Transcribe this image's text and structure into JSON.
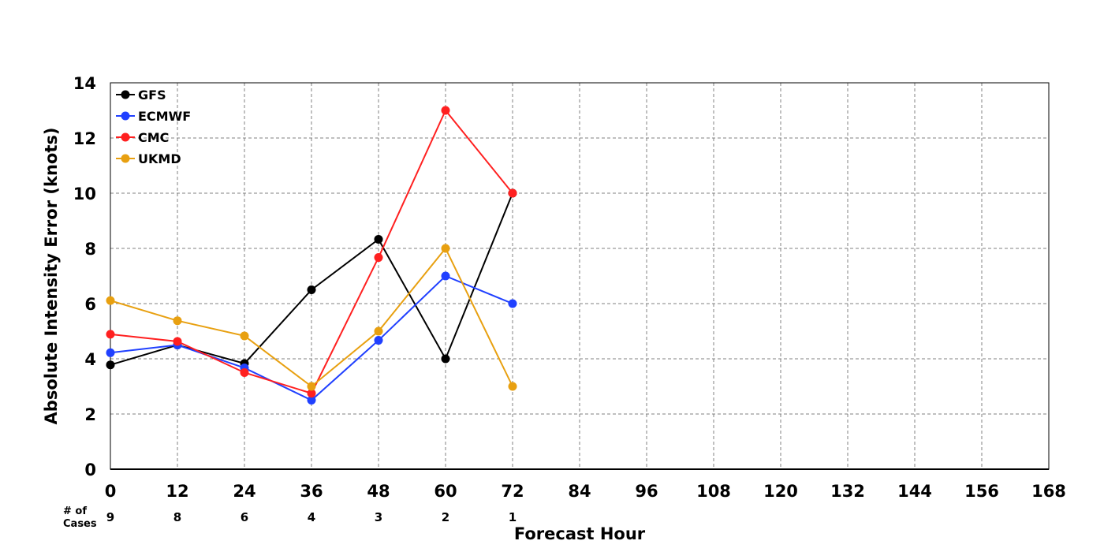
{
  "chart_data": {
    "type": "line",
    "xlabel": "Forecast Hour",
    "ylabel": "Absolute Intensity Error (knots)",
    "xlim": [
      0,
      168
    ],
    "ylim": [
      0,
      14
    ],
    "x_ticks": [
      0,
      12,
      24,
      36,
      48,
      60,
      72,
      84,
      96,
      108,
      120,
      132,
      144,
      156,
      168
    ],
    "y_ticks": [
      0,
      2,
      4,
      6,
      8,
      10,
      12,
      14
    ],
    "grid": true,
    "legend_position": "top-left",
    "cases_label": "# of Cases",
    "cases_label_lines": [
      "# of",
      "Cases"
    ],
    "cases": [
      {
        "x": 0,
        "n": "9"
      },
      {
        "x": 12,
        "n": "8"
      },
      {
        "x": 24,
        "n": "6"
      },
      {
        "x": 36,
        "n": "4"
      },
      {
        "x": 48,
        "n": "3"
      },
      {
        "x": 60,
        "n": "2"
      },
      {
        "x": 72,
        "n": "1"
      }
    ],
    "x": [
      0,
      12,
      24,
      36,
      48,
      60,
      72
    ],
    "series": [
      {
        "name": "GFS",
        "color": "#000000",
        "values": [
          3.78,
          4.5,
          3.83,
          6.5,
          8.33,
          4.0,
          10.0
        ]
      },
      {
        "name": "ECMWF",
        "color": "#2040ff",
        "values": [
          4.22,
          4.5,
          3.67,
          2.5,
          4.67,
          7.0,
          6.0
        ]
      },
      {
        "name": "CMC",
        "color": "#ff2020",
        "values": [
          4.89,
          4.63,
          3.5,
          2.75,
          7.67,
          13.0,
          10.0
        ]
      },
      {
        "name": "UKMD",
        "color": "#e8a010",
        "values": [
          6.11,
          5.38,
          4.83,
          3.0,
          5.0,
          8.0,
          3.0
        ]
      }
    ]
  }
}
